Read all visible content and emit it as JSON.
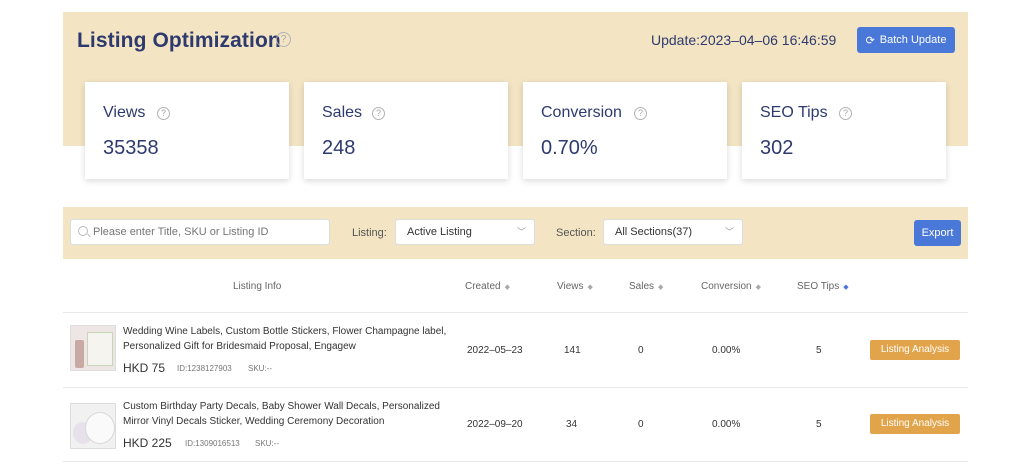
{
  "header": {
    "title": "Listing Optimization",
    "help_icon": "question-circle-icon",
    "update_text": "Update:2023–04–06 16:46:59",
    "batch_update_label": "Batch Update",
    "batch_update_icon": "refresh-icon"
  },
  "stats": [
    {
      "label": "Views",
      "value": "35358"
    },
    {
      "label": "Sales",
      "value": "248"
    },
    {
      "label": "Conversion",
      "value": "0.70%"
    },
    {
      "label": "SEO Tips",
      "value": "302"
    }
  ],
  "filters": {
    "search_placeholder": "Please enter Title, SKU or Listing ID",
    "listing_label": "Listing:",
    "listing_value": "Active Listing",
    "section_label": "Section:",
    "section_value": "All Sections(37)",
    "export_label": "Export"
  },
  "table": {
    "headers": [
      "Listing Info",
      "Created",
      "Views",
      "Sales",
      "Conversion",
      "SEO Tips"
    ],
    "rows": [
      {
        "title": "Wedding Wine Labels, Custom Bottle Stickers, Flower Champagne label, Personalized Gift for Bridesmaid Proposal, Engagew",
        "price": "HKD 75",
        "id": "ID:1238127903",
        "sku": "SKU:--",
        "created": "2022–05–23",
        "views": "141",
        "sales": "0",
        "conversion": "0.00%",
        "seo_tips": "5",
        "action": "Listing Analysis"
      },
      {
        "title": "Custom Birthday Party Decals, Baby Shower Wall Decals, Personalized Mirror Vinyl Decals Sticker, Wedding Ceremony Decoration",
        "price": "HKD 225",
        "id": "ID:1309016513",
        "sku": "SKU:--",
        "created": "2022–09–20",
        "views": "34",
        "sales": "0",
        "conversion": "0.00%",
        "seo_tips": "5",
        "action": "Listing Analysis"
      }
    ]
  },
  "colors": {
    "accent": "#4a78d8",
    "panel": "#f3e5c3",
    "title": "#2e3a6e",
    "action": "#e2a44a"
  }
}
